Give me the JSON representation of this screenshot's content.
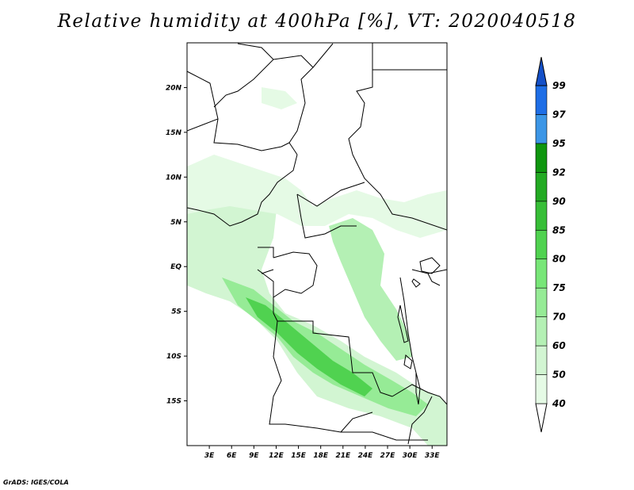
{
  "title": "Relative humidity at 400hPa [%], VT: 2020040518",
  "credit": "GrADS: IGES/COLA",
  "map": {
    "lat_ticks": [
      "20N",
      "15N",
      "10N",
      "5N",
      "EQ",
      "5S",
      "10S",
      "15S"
    ],
    "lon_ticks": [
      "3E",
      "6E",
      "9E",
      "12E",
      "15E",
      "18E",
      "21E",
      "24E",
      "27E",
      "30E",
      "33E"
    ],
    "lon_range": [
      0,
      35
    ],
    "lat_range": [
      -20,
      25
    ]
  },
  "colorbar": {
    "levels": [
      "40",
      "50",
      "60",
      "70",
      "75",
      "80",
      "85",
      "90",
      "92",
      "95",
      "97",
      "99"
    ],
    "colors": [
      "#ffffff",
      "#e5fae5",
      "#d2f5d2",
      "#b4f0b4",
      "#96eb96",
      "#78e678",
      "#50d250",
      "#37be37",
      "#23aa23",
      "#0f960f",
      "#3c96e6",
      "#1e6ee6",
      "#1450c8"
    ]
  }
}
